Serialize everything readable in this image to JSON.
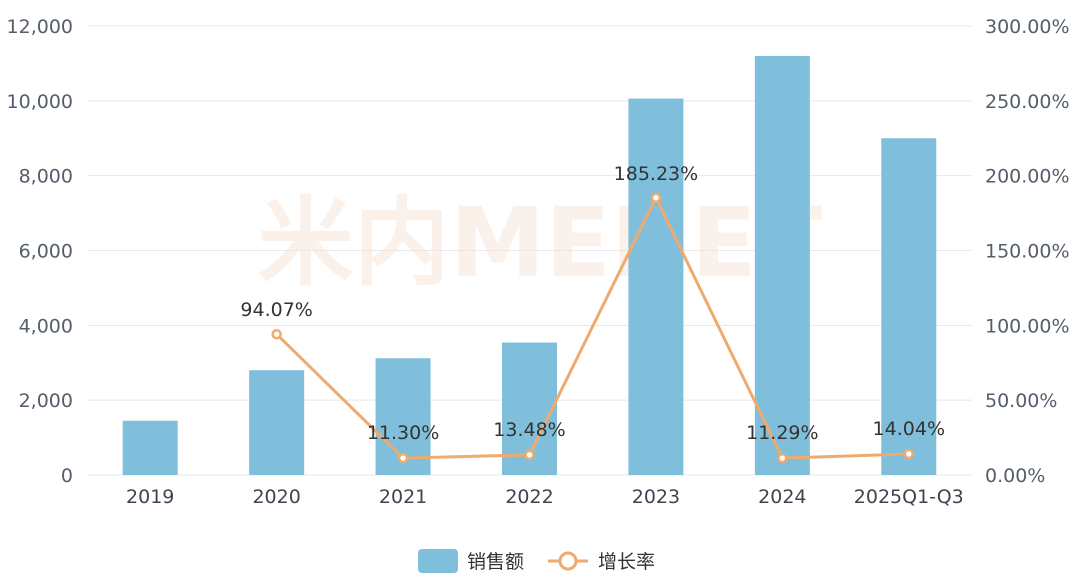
{
  "chart_data": {
    "type": "bar",
    "categories": [
      "2019",
      "2020",
      "2021",
      "2022",
      "2023",
      "2024",
      "2025Q1-Q3"
    ],
    "series": [
      {
        "name": "销售额",
        "type": "bar",
        "axis": "left",
        "color": "#7fbfdb",
        "values": [
          1450,
          2800,
          3120,
          3540,
          10060,
          11200,
          9000
        ]
      },
      {
        "name": "增长率",
        "type": "line",
        "axis": "right",
        "color": "#efaa6e",
        "values": [
          null,
          94.07,
          11.3,
          13.48,
          185.23,
          11.29,
          14.04
        ],
        "labels": [
          "",
          "94.07%",
          "11.30%",
          "13.48%",
          "185.23%",
          "11.29%",
          "14.04%"
        ]
      }
    ],
    "ylim_left": [
      0,
      12000
    ],
    "ylim_right": [
      0,
      300
    ],
    "left_ticks": [
      "0",
      "2,000",
      "4,000",
      "6,000",
      "8,000",
      "10,000",
      "12,000"
    ],
    "right_ticks": [
      "0.00%",
      "50.00%",
      "100.00%",
      "150.00%",
      "200.00%",
      "250.00%",
      "300.00%"
    ],
    "grid": true,
    "legend_position": "bottom-center",
    "legend": [
      "销售额",
      "增长率"
    ]
  },
  "watermark": {
    "text": "米内MENET"
  },
  "colors": {
    "bar": "#7fbfdb",
    "line": "#efaa6e",
    "grid": "#e6e8ec"
  }
}
